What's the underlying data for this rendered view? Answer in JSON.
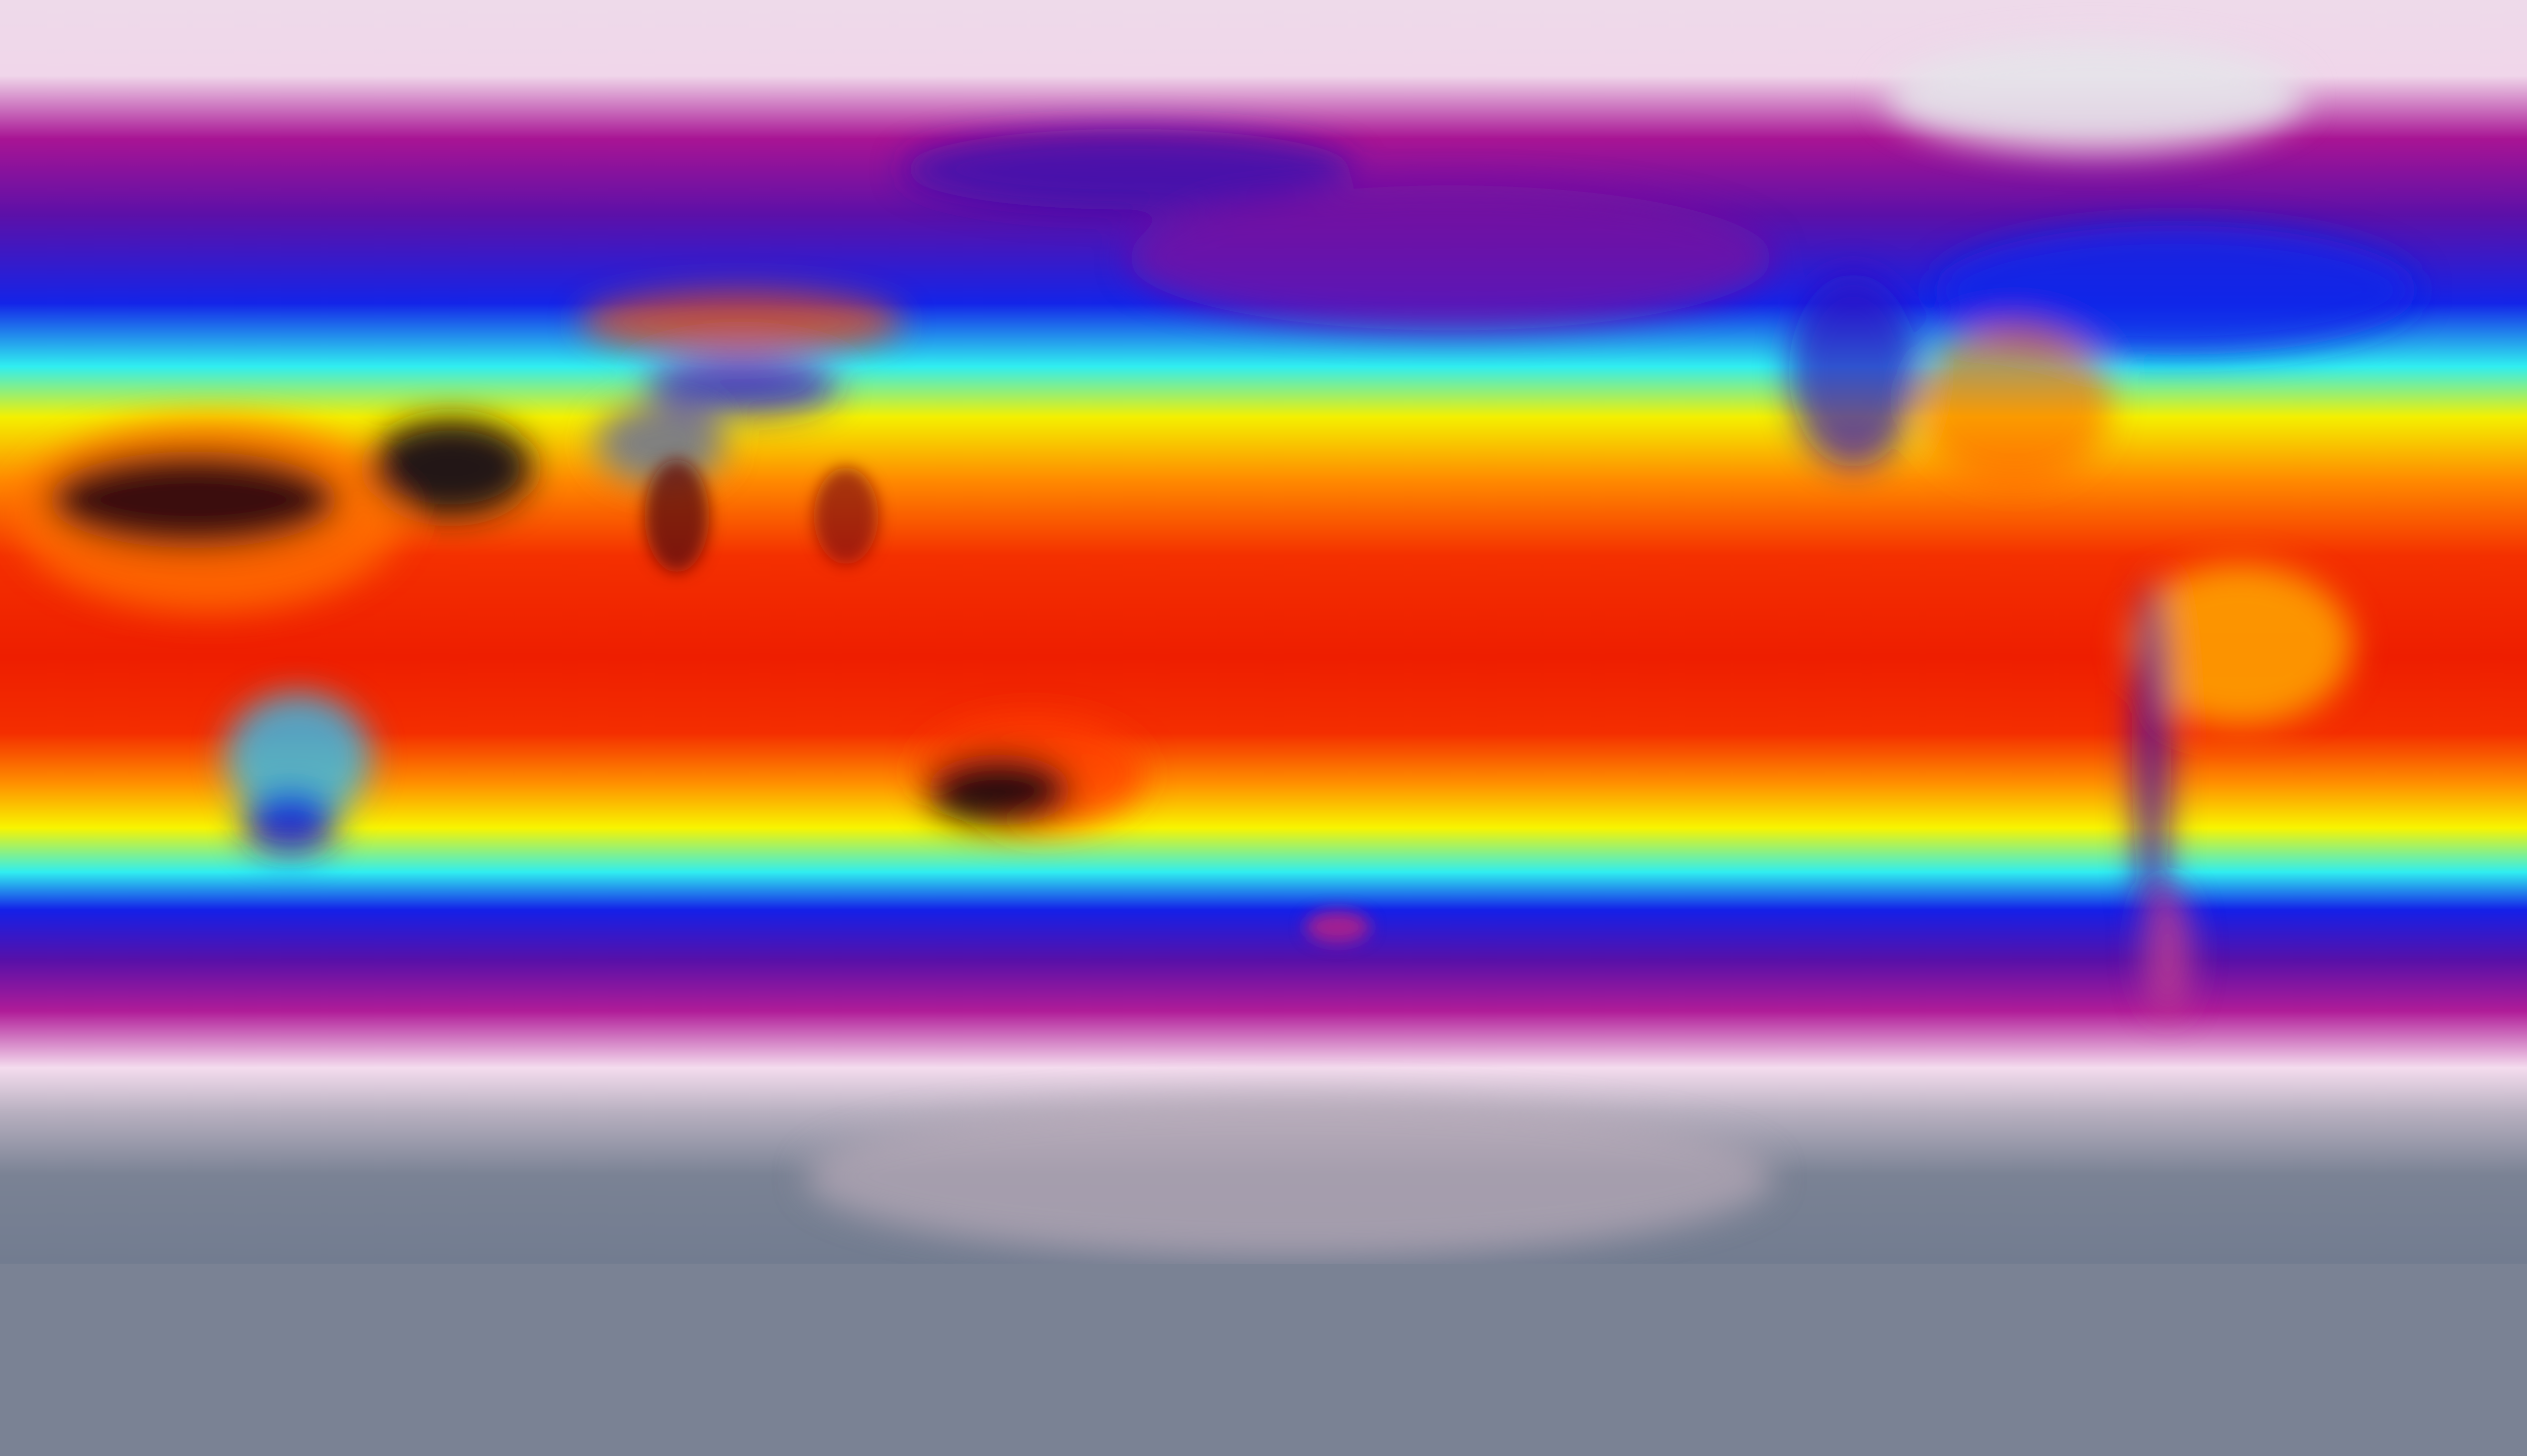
{
  "map": {
    "projection": "equirectangular",
    "variable_palette": [
      "#f3dcee",
      "#a0108c",
      "#5a10a8",
      "#1020e8",
      "#30f0f0",
      "#f8f000",
      "#ff8000",
      "#f02000",
      "#2a1010"
    ],
    "bands": [
      {
        "color": "#eedaea"
      },
      {
        "color": "#f0d6ea"
      },
      {
        "color": "#a81494"
      },
      {
        "color": "#5c10a8"
      },
      {
        "color": "#1424e8"
      },
      {
        "color": "#30eef0"
      },
      {
        "color": "#f4f000"
      },
      {
        "color": "#ff8a00"
      },
      {
        "color": "#f43000"
      },
      {
        "color": "#ee1e00"
      },
      {
        "color": "#f42e00"
      },
      {
        "color": "#ff9000"
      },
      {
        "color": "#f8f400"
      },
      {
        "color": "#30eef0"
      },
      {
        "color": "#1420e8"
      },
      {
        "color": "#5810a8"
      },
      {
        "color": "#b01c98"
      },
      {
        "color": "#f4dcee"
      },
      {
        "color": "#b8b0c0"
      },
      {
        "color": "#7a8294"
      },
      {
        "color": "#727c90"
      }
    ],
    "regions": {
      "sahara": "#3a0808",
      "arabia": "#241414",
      "tibet": "#808080",
      "australia_interior": "#2a0808",
      "greenland": "#e8e8ec",
      "antarctica": "#7a8294"
    }
  }
}
